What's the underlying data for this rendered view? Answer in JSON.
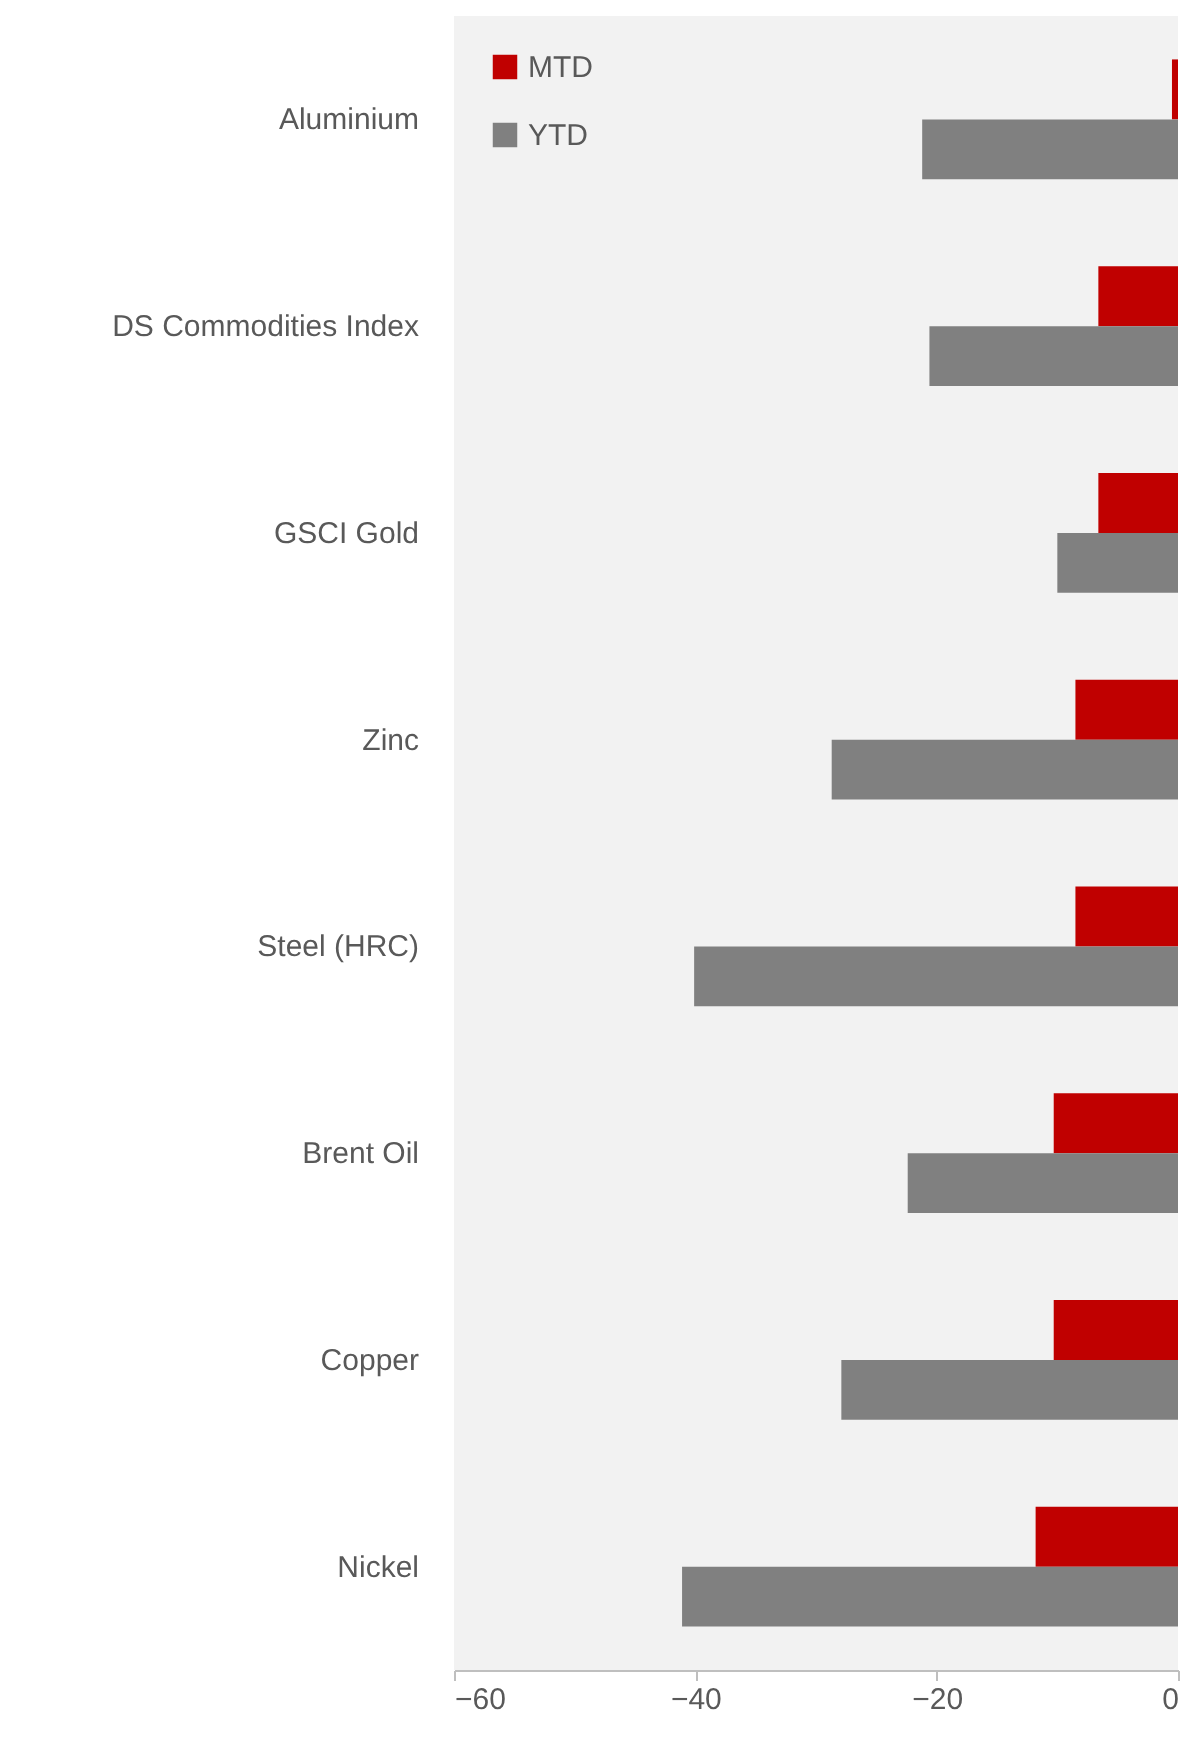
{
  "chart_data": {
    "type": "bar",
    "orientation": "horizontal",
    "categories": [
      "Aluminium",
      "DS Commodities Index",
      "GSCI Gold",
      "Zinc",
      "Steel (HRC)",
      "Brent Oil",
      "Copper",
      "Nickel"
    ],
    "series": [
      {
        "name": "MTD",
        "color": "#c00000",
        "values": [
          -0.5,
          -6.6,
          -6.6,
          -8.5,
          -8.5,
          -10.3,
          -10.3,
          -11.8
        ]
      },
      {
        "name": "YTD",
        "color": "#808080",
        "values": [
          -21.2,
          -20.6,
          -10,
          -28.7,
          -40.1,
          -22.4,
          -27.9,
          -41.1
        ]
      }
    ],
    "xlim": [
      -60,
      0
    ],
    "xticks": [
      -60,
      -40,
      -20,
      0
    ],
    "grid": false,
    "legend": "top left"
  }
}
